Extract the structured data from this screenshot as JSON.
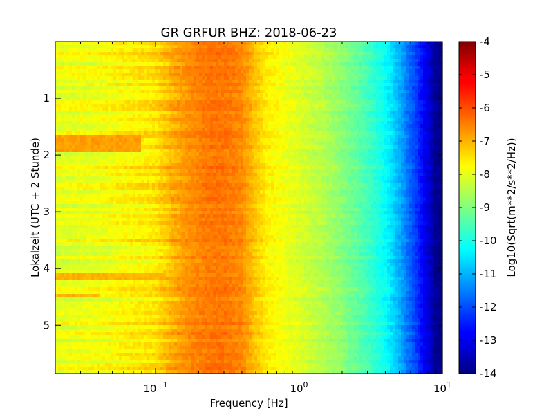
{
  "chart_data": {
    "type": "heatmap",
    "title": "GR GRFUR BHZ: 2018-06-23",
    "xlabel": "Frequency [Hz]",
    "ylabel": "Lokalzeit (UTC + 2 Stunde)",
    "colorbar_label": "Log10(Sqrt(m**2/s**2/Hz))",
    "x_scale": "log",
    "xlim": [
      0.02,
      10
    ],
    "ylim": [
      0,
      5.85
    ],
    "y_inverted": true,
    "x_ticks": [
      {
        "value": 0.1,
        "base": "10",
        "exp": "−1"
      },
      {
        "value": 1,
        "base": "10",
        "exp": "0"
      },
      {
        "value": 10,
        "base": "10",
        "exp": "1"
      }
    ],
    "y_ticks": [
      {
        "value": 1,
        "label": "1"
      },
      {
        "value": 2,
        "label": "2"
      },
      {
        "value": 3,
        "label": "3"
      },
      {
        "value": 4,
        "label": "4"
      },
      {
        "value": 5,
        "label": "5"
      }
    ],
    "colorbar_range": [
      -14,
      -4
    ],
    "colorbar_ticks": [
      "-4",
      "-5",
      "-6",
      "-7",
      "-8",
      "-9",
      "-10",
      "-11",
      "-12",
      "-13",
      "-14"
    ],
    "colormap": "jet",
    "spectral_profile": {
      "frequency_hz": [
        0.02,
        0.04,
        0.06,
        0.08,
        0.1,
        0.13,
        0.18,
        0.25,
        0.3,
        0.4,
        0.5,
        0.6,
        0.8,
        1.0,
        1.5,
        2.0,
        3.0,
        4.0,
        5.0,
        6.0,
        7.0,
        8.0,
        9.0,
        10.0
      ],
      "level": [
        -8.0,
        -7.9,
        -7.7,
        -7.6,
        -7.5,
        -7.0,
        -6.6,
        -6.4,
        -6.4,
        -6.6,
        -7.2,
        -7.6,
        -7.9,
        -8.1,
        -8.5,
        -8.9,
        -9.6,
        -10.2,
        -11.0,
        -11.8,
        -12.5,
        -13.2,
        -13.8,
        -14.0
      ]
    },
    "notable_features": [
      {
        "time_range": [
          1.65,
          1.95
        ],
        "freq_range": [
          0.02,
          0.08
        ],
        "level": -6.8
      },
      {
        "time_range": [
          4.1,
          4.2
        ],
        "freq_range": [
          0.02,
          0.12
        ],
        "level": -7.0
      },
      {
        "time_range": [
          4.45,
          4.5
        ],
        "freq_range": [
          0.02,
          0.04
        ],
        "level": -7.0
      }
    ]
  }
}
